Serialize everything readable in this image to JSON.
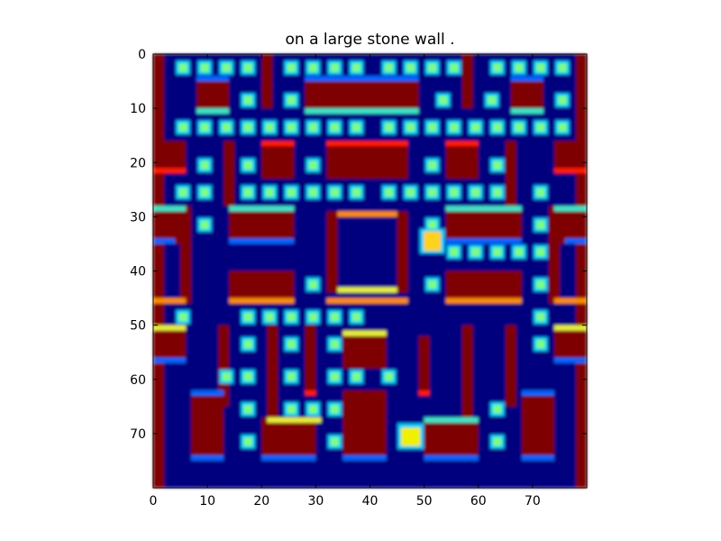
{
  "title": "on a large stone wall .",
  "grid_size": 80,
  "axes": {
    "x_ticks": [
      0,
      10,
      20,
      30,
      40,
      50,
      60,
      70
    ],
    "y_ticks": [
      0,
      10,
      20,
      30,
      40,
      50,
      60,
      70
    ]
  },
  "colors": {
    "background": "#00007f",
    "wall": "#7f0000",
    "wall_edge_red": "#ff1a00",
    "wall_edge_orange": "#ff8c00",
    "wall_edge_yellow": "#e6f03c",
    "wall_edge_cyan": "#40e6c8",
    "wall_edge_blue": "#0064ff",
    "pellet": "#7cff80",
    "pellet_glow": "#00c8ff",
    "ghost": "#ffd21e",
    "pacman": "#f0f000"
  },
  "maze": {
    "walls": [
      [
        0,
        0,
        2,
        80
      ],
      [
        78,
        0,
        2,
        80
      ],
      [
        20,
        0,
        2,
        10
      ],
      [
        57,
        0,
        2,
        10
      ],
      [
        8,
        5,
        6,
        5
      ],
      [
        28,
        5,
        21,
        5
      ],
      [
        66,
        5,
        6,
        5
      ],
      [
        0,
        16,
        6,
        6
      ],
      [
        20,
        17,
        6,
        6
      ],
      [
        32,
        17,
        15,
        6
      ],
      [
        54,
        17,
        6,
        6
      ],
      [
        74,
        16,
        6,
        6
      ],
      [
        13,
        16,
        2,
        12
      ],
      [
        65,
        16,
        2,
        12
      ],
      [
        0,
        28,
        6,
        7
      ],
      [
        14,
        28,
        12,
        6
      ],
      [
        54,
        28,
        14,
        6
      ],
      [
        74,
        28,
        6,
        7
      ],
      [
        5,
        28,
        2,
        18
      ],
      [
        73,
        28,
        2,
        18
      ],
      [
        32,
        29,
        2,
        15
      ],
      [
        45,
        29,
        2,
        15
      ],
      [
        14,
        40,
        12,
        5
      ],
      [
        54,
        40,
        14,
        5
      ],
      [
        0,
        50,
        6,
        6
      ],
      [
        74,
        50,
        6,
        6
      ],
      [
        12,
        50,
        2,
        15
      ],
      [
        21,
        50,
        2,
        18
      ],
      [
        28,
        50,
        2,
        12
      ],
      [
        35,
        51,
        8,
        7
      ],
      [
        49,
        52,
        2,
        10
      ],
      [
        57,
        50,
        2,
        18
      ],
      [
        65,
        50,
        2,
        15
      ],
      [
        7,
        62,
        6,
        12
      ],
      [
        20,
        67,
        10,
        7
      ],
      [
        35,
        62,
        8,
        12
      ],
      [
        50,
        67,
        10,
        7
      ],
      [
        68,
        62,
        6,
        12
      ]
    ],
    "edges": [
      [
        28,
        4,
        21,
        1,
        "wall_edge_blue"
      ],
      [
        8,
        4,
        6,
        1,
        "wall_edge_blue"
      ],
      [
        66,
        4,
        6,
        1,
        "wall_edge_blue"
      ],
      [
        8,
        10,
        6,
        1,
        "wall_edge_cyan"
      ],
      [
        28,
        10,
        21,
        1,
        "wall_edge_cyan"
      ],
      [
        66,
        10,
        6,
        1,
        "wall_edge_cyan"
      ],
      [
        20,
        16,
        6,
        1,
        "wall_edge_red"
      ],
      [
        32,
        16,
        15,
        1,
        "wall_edge_red"
      ],
      [
        54,
        16,
        6,
        1,
        "wall_edge_red"
      ],
      [
        0,
        21,
        6,
        1,
        "wall_edge_red"
      ],
      [
        74,
        21,
        6,
        1,
        "wall_edge_red"
      ],
      [
        0,
        28,
        6,
        1,
        "wall_edge_cyan"
      ],
      [
        14,
        28,
        12,
        1,
        "wall_edge_cyan"
      ],
      [
        54,
        28,
        14,
        1,
        "wall_edge_cyan"
      ],
      [
        74,
        28,
        6,
        1,
        "wall_edge_cyan"
      ],
      [
        34,
        29,
        11,
        1,
        "wall_edge_orange"
      ],
      [
        14,
        34,
        12,
        1,
        "wall_edge_blue"
      ],
      [
        54,
        34,
        14,
        1,
        "wall_edge_blue"
      ],
      [
        0,
        34,
        4,
        1,
        "wall_edge_blue"
      ],
      [
        76,
        34,
        4,
        1,
        "wall_edge_blue"
      ],
      [
        34,
        43,
        11,
        1,
        "wall_edge_yellow"
      ],
      [
        0,
        45,
        6,
        1,
        "wall_edge_orange"
      ],
      [
        14,
        45,
        12,
        1,
        "wall_edge_orange"
      ],
      [
        32,
        45,
        15,
        1,
        "wall_edge_orange"
      ],
      [
        54,
        45,
        14,
        1,
        "wall_edge_orange"
      ],
      [
        74,
        45,
        6,
        1,
        "wall_edge_orange"
      ],
      [
        0,
        50,
        6,
        1,
        "wall_edge_yellow"
      ],
      [
        74,
        50,
        6,
        1,
        "wall_edge_yellow"
      ],
      [
        35,
        51,
        8,
        1,
        "wall_edge_yellow"
      ],
      [
        0,
        56,
        6,
        1,
        "wall_edge_blue"
      ],
      [
        74,
        56,
        6,
        1,
        "wall_edge_blue"
      ],
      [
        7,
        62,
        6,
        1,
        "wall_edge_blue"
      ],
      [
        68,
        62,
        6,
        1,
        "wall_edge_blue"
      ],
      [
        28,
        62,
        2,
        1,
        "wall_edge_red"
      ],
      [
        49,
        62,
        2,
        1,
        "wall_edge_red"
      ],
      [
        21,
        67,
        10,
        1,
        "wall_edge_yellow"
      ],
      [
        50,
        67,
        10,
        1,
        "wall_edge_cyan"
      ],
      [
        7,
        74,
        6,
        1,
        "wall_edge_blue"
      ],
      [
        20,
        74,
        10,
        1,
        "wall_edge_blue"
      ],
      [
        35,
        74,
        8,
        1,
        "wall_edge_blue"
      ],
      [
        50,
        74,
        10,
        1,
        "wall_edge_blue"
      ],
      [
        68,
        74,
        6,
        1,
        "wall_edge_blue"
      ]
    ],
    "pellets": [
      [
        5,
        2
      ],
      [
        9,
        2
      ],
      [
        13,
        2
      ],
      [
        17,
        2
      ],
      [
        25,
        2
      ],
      [
        29,
        2
      ],
      [
        33,
        2
      ],
      [
        37,
        2
      ],
      [
        43,
        2
      ],
      [
        47,
        2
      ],
      [
        51,
        2
      ],
      [
        55,
        2
      ],
      [
        63,
        2
      ],
      [
        67,
        2
      ],
      [
        71,
        2
      ],
      [
        75,
        2
      ],
      [
        17,
        8
      ],
      [
        25,
        8
      ],
      [
        53,
        8
      ],
      [
        62,
        8
      ],
      [
        75,
        8
      ],
      [
        5,
        13
      ],
      [
        9,
        13
      ],
      [
        13,
        13
      ],
      [
        17,
        13
      ],
      [
        21,
        13
      ],
      [
        25,
        13
      ],
      [
        29,
        13
      ],
      [
        33,
        13
      ],
      [
        37,
        13
      ],
      [
        43,
        13
      ],
      [
        47,
        13
      ],
      [
        51,
        13
      ],
      [
        55,
        13
      ],
      [
        59,
        13
      ],
      [
        63,
        13
      ],
      [
        67,
        13
      ],
      [
        71,
        13
      ],
      [
        75,
        13
      ],
      [
        9,
        20
      ],
      [
        17,
        20
      ],
      [
        29,
        20
      ],
      [
        51,
        20
      ],
      [
        63,
        20
      ],
      [
        5,
        25
      ],
      [
        9,
        25
      ],
      [
        17,
        25
      ],
      [
        21,
        25
      ],
      [
        25,
        25
      ],
      [
        29,
        25
      ],
      [
        33,
        25
      ],
      [
        37,
        25
      ],
      [
        43,
        25
      ],
      [
        47,
        25
      ],
      [
        51,
        25
      ],
      [
        55,
        25
      ],
      [
        59,
        25
      ],
      [
        63,
        25
      ],
      [
        71,
        25
      ],
      [
        9,
        31
      ],
      [
        51,
        31
      ],
      [
        71,
        31
      ],
      [
        55,
        36
      ],
      [
        59,
        36
      ],
      [
        63,
        36
      ],
      [
        67,
        36
      ],
      [
        71,
        36
      ],
      [
        29,
        42
      ],
      [
        51,
        42
      ],
      [
        71,
        42
      ],
      [
        5,
        48
      ],
      [
        17,
        48
      ],
      [
        21,
        48
      ],
      [
        25,
        48
      ],
      [
        29,
        48
      ],
      [
        33,
        48
      ],
      [
        37,
        48
      ],
      [
        71,
        48
      ],
      [
        17,
        53
      ],
      [
        25,
        53
      ],
      [
        33,
        53
      ],
      [
        71,
        53
      ],
      [
        13,
        59
      ],
      [
        17,
        59
      ],
      [
        25,
        59
      ],
      [
        33,
        59
      ],
      [
        37,
        59
      ],
      [
        43,
        59
      ],
      [
        17,
        65
      ],
      [
        25,
        65
      ],
      [
        29,
        65
      ],
      [
        33,
        65
      ],
      [
        63,
        65
      ],
      [
        17,
        71
      ],
      [
        33,
        71
      ],
      [
        63,
        71
      ]
    ],
    "ghosts": [
      [
        51,
        34
      ]
    ],
    "pacman": [
      [
        47,
        70
      ]
    ]
  }
}
